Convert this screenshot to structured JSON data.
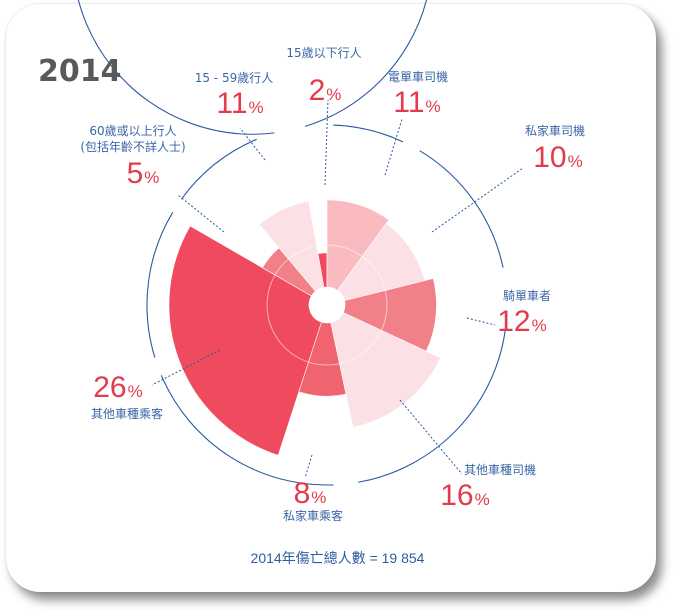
{
  "title": "2014",
  "footer": "2014年傷亡總人數 = 19 854",
  "percent_unit": "%",
  "colors": {
    "title_gray": "#58595b",
    "label_blue": "#3b66a8",
    "percent_red": "#e23c4c",
    "ring_blue": "#2a5aa0",
    "slice_dark": "#ef4a5e",
    "slice_mid": "#f28088",
    "slice_light": "#f9bbc0",
    "slice_pale": "#fbe1e6"
  },
  "chart_data": {
    "type": "polar_area",
    "title": "2014",
    "total_label": "2014年傷亡總人數 = 19 854",
    "series": [
      {
        "label": "15歲以下行人",
        "value": 2,
        "color": "#ef4a5e"
      },
      {
        "label": "電單車司機",
        "value": 11,
        "color": "#f9bbc0"
      },
      {
        "label": "私家車司機",
        "value": 10,
        "color": "#fbe1e6"
      },
      {
        "label": "騎單車者",
        "value": 12,
        "color": "#f28088"
      },
      {
        "label": "其他車種司機",
        "value": 16,
        "color": "#fbe1e6"
      },
      {
        "label": "私家車乘客",
        "value": 8,
        "color": "#ef646f"
      },
      {
        "label": "其他車種乘客",
        "value": 26,
        "color": "#ef4a5e"
      },
      {
        "label": "60歲或以上行人(包括年齡不詳人士)",
        "value": 5,
        "color": "#f28088"
      },
      {
        "label": "15 - 59歲行人",
        "value": 11,
        "color": "#fbe1e6"
      }
    ]
  }
}
